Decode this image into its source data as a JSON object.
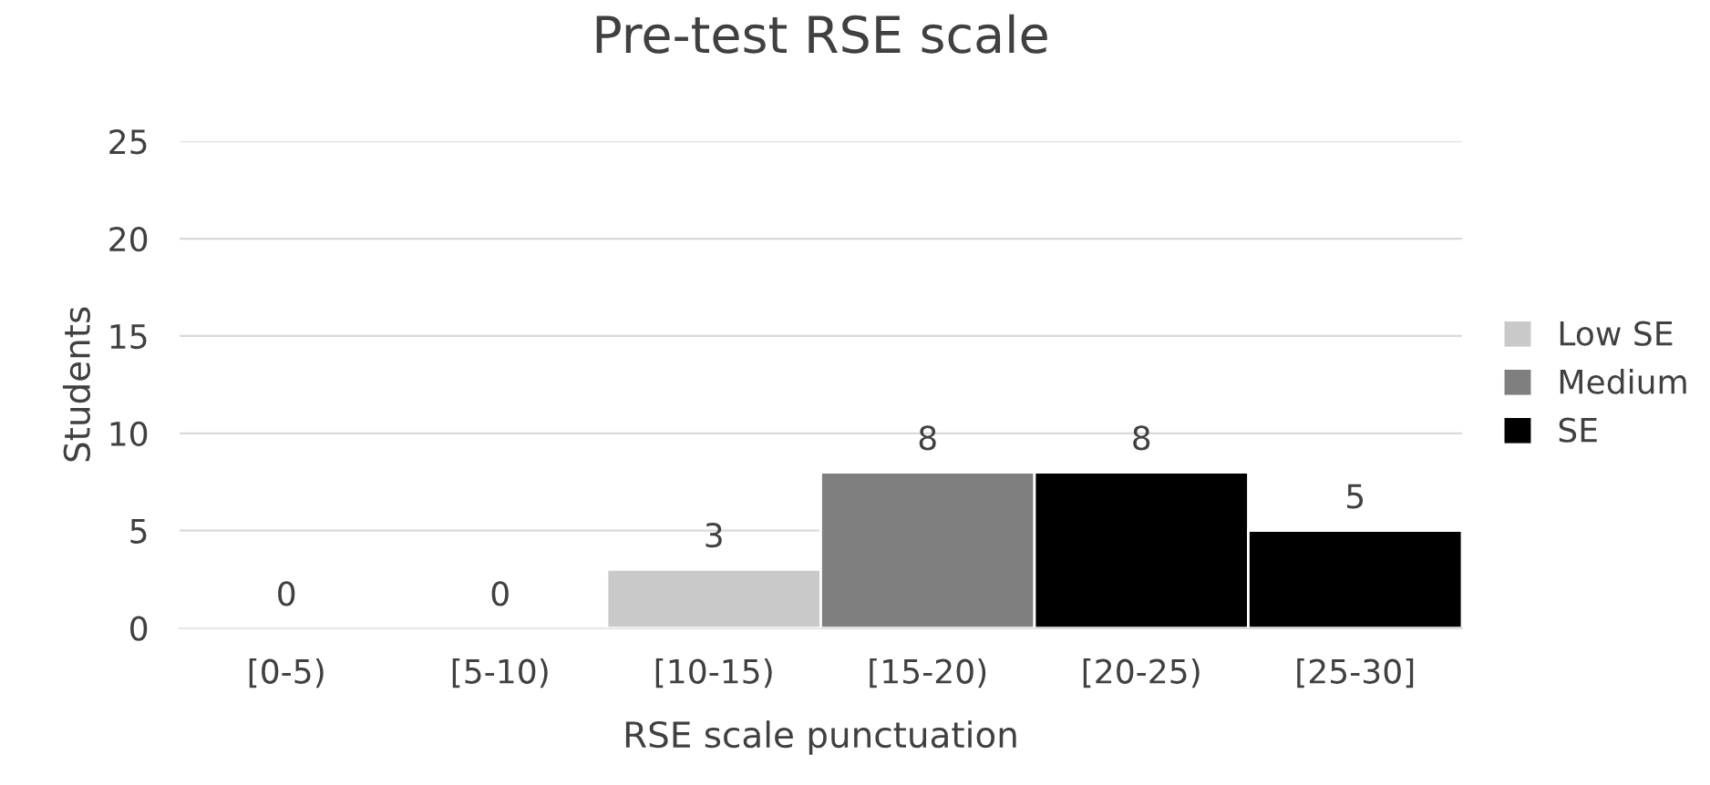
{
  "chart_data": {
    "type": "bar",
    "title": "Pre-test RSE scale",
    "xlabel": "RSE scale punctuation",
    "ylabel": "Students",
    "categories": [
      "[0-5)",
      "[5-10)",
      "[10-15)",
      "[15-20)",
      "[20-25)",
      "[25-30]"
    ],
    "series": [
      {
        "name": "Low SE",
        "color": "#c9c9c9",
        "values": [
          0,
          0,
          3,
          null,
          null,
          null
        ]
      },
      {
        "name": "Medium",
        "color": "#7f7f7f",
        "values": [
          null,
          null,
          null,
          8,
          null,
          null
        ]
      },
      {
        "name": "SE",
        "color": "#000000",
        "values": [
          null,
          null,
          null,
          null,
          8,
          5
        ]
      }
    ],
    "ylim": [
      0,
      25
    ],
    "yticks": [
      0,
      5,
      10,
      15,
      20,
      25
    ],
    "grid": "y",
    "legend": "right",
    "data_labels": true
  }
}
